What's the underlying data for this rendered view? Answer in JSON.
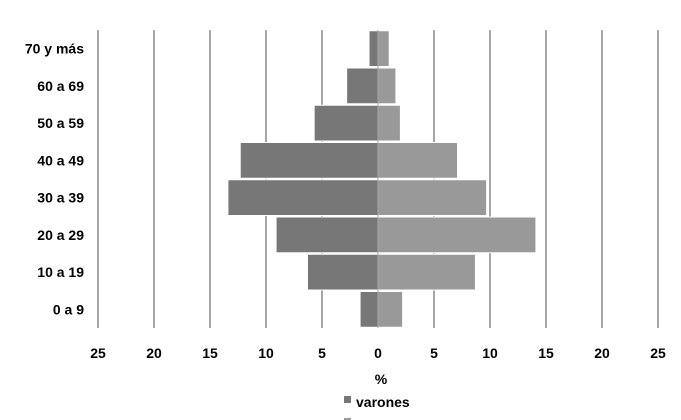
{
  "chart_data": {
    "type": "bar",
    "orientation": "horizontal",
    "layout": "population-pyramid",
    "title": "",
    "xlabel": "%",
    "ylabel": "",
    "xlim": [
      -25,
      25
    ],
    "xticks": [
      -25,
      -20,
      -15,
      -10,
      -5,
      0,
      5,
      10,
      15,
      20,
      25
    ],
    "xtick_labels": [
      "25",
      "20",
      "15",
      "10",
      "5",
      "0",
      "5",
      "10",
      "15",
      "20",
      "25"
    ],
    "grid": true,
    "legend_position": "bottom",
    "categories": [
      "70 y más",
      "60 a 69",
      "50 a 59",
      "40 a 49",
      "30 a 39",
      "20 a 29",
      "10 a 19",
      "0 a 9"
    ],
    "series": [
      {
        "name": "varones",
        "color": "#777777",
        "side": "left",
        "values": [
          0.8,
          2.8,
          5.7,
          12.3,
          13.4,
          9.1,
          6.3,
          1.6
        ]
      },
      {
        "color": "#999999",
        "side": "right",
        "values": [
          1.0,
          1.6,
          2.0,
          7.1,
          9.7,
          14.1,
          8.7,
          2.2
        ]
      }
    ]
  }
}
